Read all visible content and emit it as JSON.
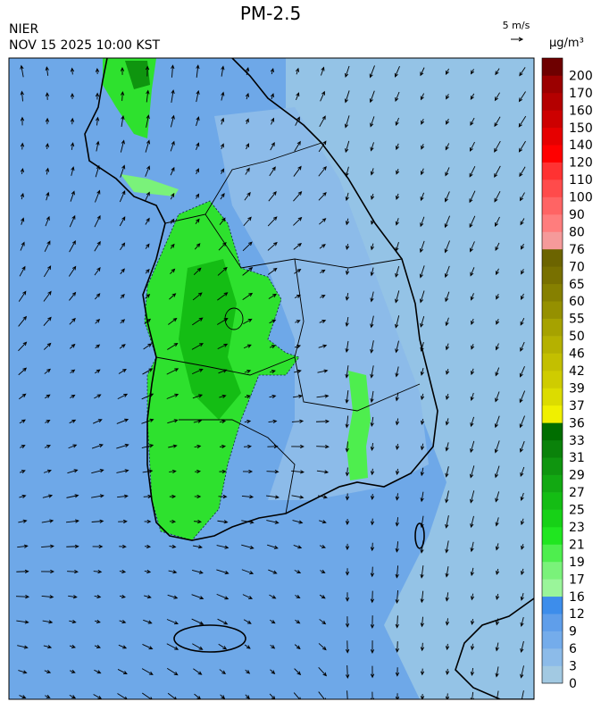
{
  "header": {
    "title": "PM-2.5",
    "agency": "NIER",
    "datetime": "NOV 15 2025 10:00 KST",
    "wind_scale": "5 m/s",
    "unit": "μg/m³"
  },
  "colorbar": {
    "levels": [
      0,
      3,
      6,
      9,
      12,
      16,
      17,
      19,
      21,
      23,
      25,
      27,
      29,
      31,
      33,
      36,
      37,
      39,
      42,
      46,
      50,
      55,
      60,
      65,
      70,
      76,
      80,
      90,
      100,
      110,
      120,
      140,
      150,
      160,
      170,
      200
    ],
    "colors": [
      "#a2c9e2",
      "#8cbbe9",
      "#74aceb",
      "#5f9eea",
      "#3d8deb",
      "#9af59a",
      "#7af27a",
      "#4eee4e",
      "#20e620",
      "#17d117",
      "#14bd14",
      "#12a912",
      "#0f950f",
      "#0a820a",
      "#006e00",
      "#f0f000",
      "#dcdc00",
      "#cfcc00",
      "#c3bf00",
      "#b5b100",
      "#a6a200",
      "#959000",
      "#868000",
      "#787000",
      "#6c6400",
      "#f59a9a",
      "#ff7d7d",
      "#ff6464",
      "#ff4b4b",
      "#ff3232",
      "#ff0000",
      "#e60000",
      "#cd0000",
      "#b40000",
      "#9b0000",
      "#6e0000"
    ]
  }
}
